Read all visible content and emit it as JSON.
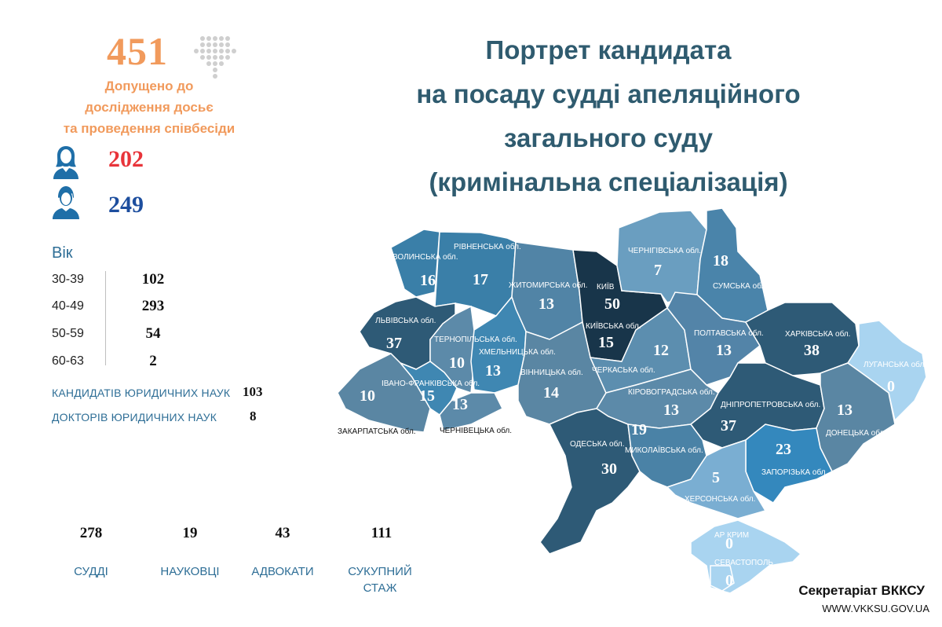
{
  "summary": {
    "total": "451",
    "total_label_lines": [
      "Допущено до",
      "дослідження досьє",
      "та проведення співбесіди"
    ],
    "women": "202",
    "men": "249"
  },
  "title_lines": [
    "Портрет кандидата",
    "на посаду судді апеляційного",
    "загального суду",
    "(кримінальна спеціалізація)"
  ],
  "age": {
    "title": "Вік",
    "rows": [
      {
        "range": "30-39",
        "count": "102"
      },
      {
        "range": "40-49",
        "count": "293"
      },
      {
        "range": "50-59",
        "count": "54"
      },
      {
        "range": "60-63",
        "count": "2"
      }
    ]
  },
  "degrees": [
    {
      "label": "КАНДИДАТІВ ЮРИДИЧНИХ НАУК",
      "value": "103"
    },
    {
      "label": "ДОКТОРІВ ЮРИДИЧНИХ НАУК",
      "value": "8"
    }
  ],
  "professions": [
    {
      "value": "278",
      "label_lines": [
        "СУДДІ"
      ]
    },
    {
      "value": "19",
      "label_lines": [
        "НАУКОВЦІ"
      ]
    },
    {
      "value": "43",
      "label_lines": [
        "АДВОКАТИ"
      ]
    },
    {
      "value": "111",
      "label_lines": [
        "СУКУПНИЙ",
        "СТАЖ"
      ]
    }
  ],
  "footer": {
    "org": "Секретаріат ВККСУ",
    "url": "WWW.VKKSU.GOV.UA"
  },
  "colors": {
    "accent_orange": "#f19a5c",
    "women_red": "#e8343a",
    "men_blue": "#1d4e9e",
    "label_blue": "#2e6e96",
    "title_slate": "#2f5b6f"
  },
  "map": {
    "regions": [
      {
        "id": "volyn",
        "name": "ВОЛИНСЬКА обл.",
        "value": "16",
        "color": "#3a7fa8"
      },
      {
        "id": "rivne",
        "name": "РІВНЕНСЬКА обл.",
        "value": "17",
        "color": "#3a7fa8"
      },
      {
        "id": "zhytomyr",
        "name": "ЖИТОМИРСЬКА обл.",
        "value": "13",
        "color": "#5184a6"
      },
      {
        "id": "kyiv-city",
        "name": "КИЇВ",
        "value": "50",
        "color": "#18354a"
      },
      {
        "id": "kyiv-oblast",
        "name": "КИЇВСЬКА обл.",
        "value": "15",
        "color": "#18354a"
      },
      {
        "id": "chernihiv",
        "name": "ЧЕРНІГІВСЬКА обл.",
        "value": "7",
        "color": "#6a9ec0"
      },
      {
        "id": "sumy",
        "name": "СУМСЬКА обл.",
        "value": "18",
        "color": "#4a84aa"
      },
      {
        "id": "lviv",
        "name": "ЛЬВІВСЬКА обл.",
        "value": "37",
        "color": "#2e5a76"
      },
      {
        "id": "ternopil",
        "name": "ТЕРНОПІЛЬСЬКА обл.",
        "value": "10",
        "color": "#5c8aa9"
      },
      {
        "id": "khmelnytskyi",
        "name": "ХМЕЛЬНИЦЬКА обл.",
        "value": "13",
        "color": "#3f87b2"
      },
      {
        "id": "vinnytsia",
        "name": "ВІННИЦЬКА обл.",
        "value": "14",
        "color": "#5a86a3"
      },
      {
        "id": "cherkasy",
        "name": "ЧЕРКАСЬКА обл.",
        "value": "12",
        "color": "#5c8eaf"
      },
      {
        "id": "poltava",
        "name": "ПОЛТАВСЬКА обл.",
        "value": "13",
        "color": "#5384a8"
      },
      {
        "id": "kharkiv",
        "name": "ХАРКІВСЬКА обл.",
        "value": "38",
        "color": "#2e5a76"
      },
      {
        "id": "luhansk",
        "name": "ЛУГАНСЬКА обл.",
        "value": "0",
        "color": "#a9d4f0"
      },
      {
        "id": "zakarpattia",
        "name": "ЗАКАРПАТСЬКА обл.",
        "value": "10",
        "color": "#5a86a3"
      },
      {
        "id": "ivano-frankivsk",
        "name": "ІВАНО-ФРАНКІВСЬКА обл.",
        "value": "15",
        "color": "#3f87b2"
      },
      {
        "id": "chernivtsi",
        "name": "ЧЕРНІВЕЦЬКА обл.",
        "value": "13",
        "color": "#5c8aa9"
      },
      {
        "id": "kirovohrad",
        "name": "КІРОВОГРАДСЬКА обл.",
        "value": "13",
        "color": "#5c8aa9"
      },
      {
        "id": "dnipro",
        "name": "ДНІПРОПЕТРОВСЬКА обл.",
        "value": "37",
        "color": "#2e5a76"
      },
      {
        "id": "donetsk",
        "name": "ДОНЕЦЬКА обл.",
        "value": "13",
        "color": "#5a86a3"
      },
      {
        "id": "odesa",
        "name": "ОДЕСЬКА обл.",
        "value": "30",
        "color": "#2e5a76"
      },
      {
        "id": "mykolaiv",
        "name": "МИКОЛАЇВСЬКА обл.",
        "value": "19",
        "color": "#4a82a6"
      },
      {
        "id": "zaporizhzhia",
        "name": "ЗАПОРІЗЬКА обл.",
        "value": "23",
        "color": "#3488bd"
      },
      {
        "id": "kherson",
        "name": "ХЕРСОНСЬКА обл.",
        "value": "5",
        "color": "#7aaed2"
      },
      {
        "id": "crimea",
        "name": "АР КРИМ",
        "value": "0",
        "color": "#a9d4f0"
      },
      {
        "id": "sevastopol",
        "name": "СЕВАСТОПОЛЬ",
        "value": "0",
        "color": "#a9d4f0"
      }
    ]
  }
}
